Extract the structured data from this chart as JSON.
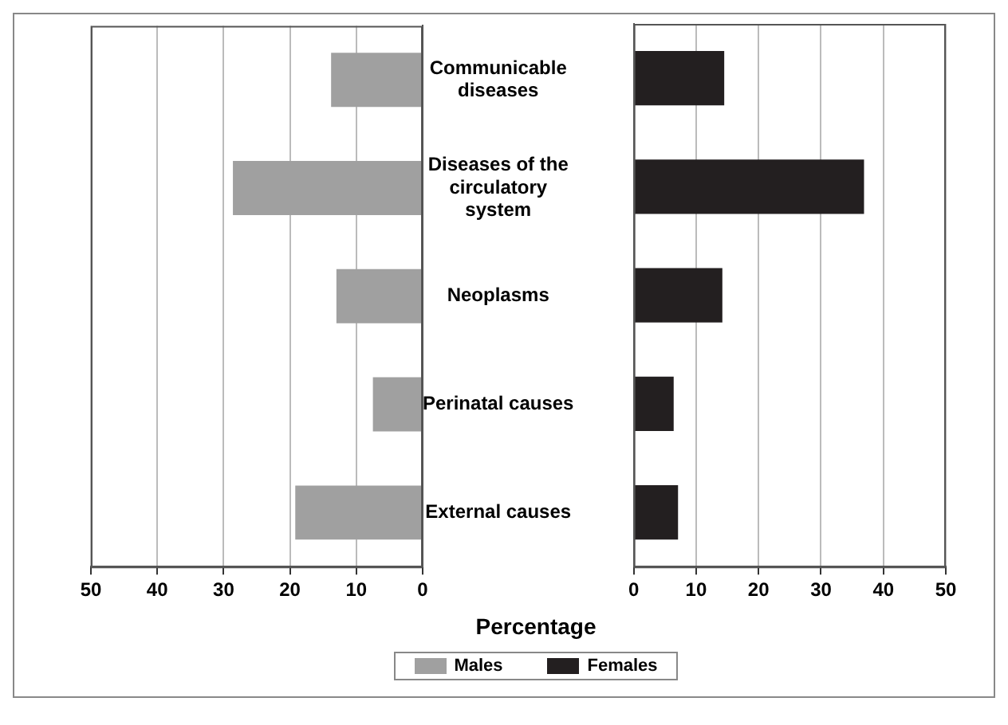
{
  "chart_data": [
    {
      "type": "bar",
      "orientation": "horizontal",
      "categories": [
        "Communicable diseases",
        "Diseases of the circulatory system",
        "Neoplasms",
        "Perinatal causes",
        "External causes"
      ],
      "series": [
        {
          "name": "Males",
          "color": "#a0a0a0",
          "values": [
            13.8,
            28.6,
            13,
            7.5,
            19.2
          ]
        }
      ],
      "xlim": [
        50,
        0
      ],
      "xticks": [
        0,
        10,
        20,
        30,
        40,
        50
      ],
      "xlabel": "Percentage",
      "grid": "x",
      "legend": "bottom"
    },
    {
      "type": "bar",
      "orientation": "horizontal",
      "categories": [
        null,
        null,
        null,
        null,
        null
      ],
      "series": [
        {
          "name": "Females",
          "color": "#231f20",
          "values": [
            14.5,
            36.9,
            14.2,
            6.4,
            7.1
          ]
        }
      ],
      "xlim": [
        0,
        50
      ],
      "xticks": [
        0,
        10,
        20,
        30,
        40,
        50
      ],
      "grid": "x",
      "legend": "bottom"
    }
  ]
}
